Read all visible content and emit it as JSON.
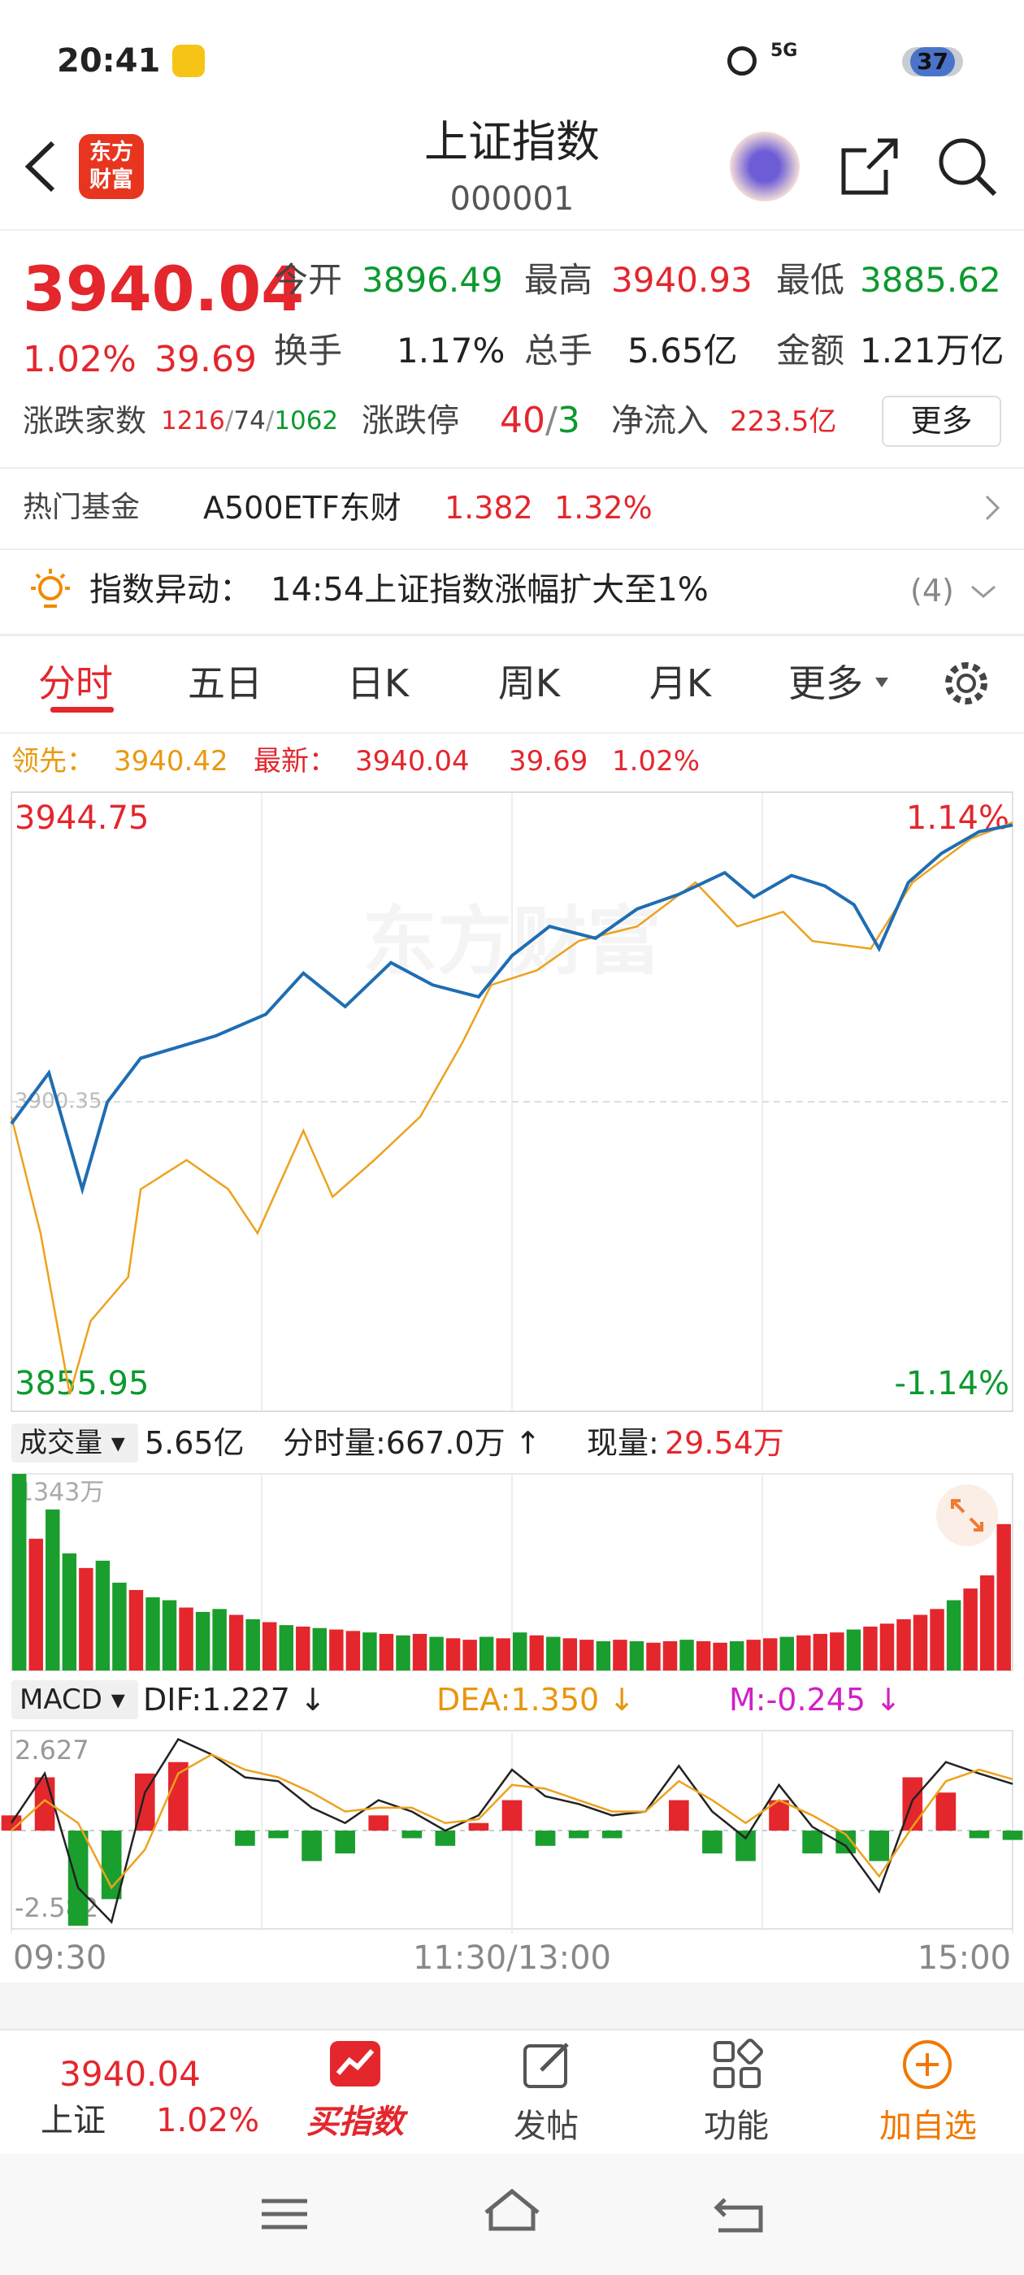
{
  "status_bar": {
    "time": "20:41",
    "network": "5G",
    "battery": "37"
  },
  "header": {
    "title": "上证指数",
    "code": "000001",
    "logo_line1": "东方",
    "logo_line2": "财富"
  },
  "quote": {
    "price": "3940.04",
    "change_pct": "1.02%",
    "change": "39.69",
    "open_label": "今开",
    "open": "3896.49",
    "high_label": "最高",
    "high": "3940.93",
    "low_label": "最低",
    "low": "3885.62",
    "turnover_label": "换手",
    "turnover": "1.17%",
    "volume_label": "总手",
    "volume": "5.65亿",
    "amount_label": "金额",
    "amount": "1.21万亿",
    "breadth_label": "涨跌家数",
    "advances": "1216",
    "unchanged": "74",
    "declines": "1062",
    "limit_label": "涨跌停",
    "limit_up": "40",
    "limit_down": "3",
    "inflow_label": "净流入",
    "inflow": "223.5亿",
    "more": "更多"
  },
  "hot_fund": {
    "label": "热门基金",
    "name": "A500ETF东财",
    "price": "1.382",
    "change": "1.32%"
  },
  "alert": {
    "label": "指数异动：",
    "text": "14:54上证指数涨幅扩大至1%",
    "count": "(4)"
  },
  "tabs": [
    "分时",
    "五日",
    "日K",
    "周K",
    "月K",
    "更多"
  ],
  "legend": {
    "lead_label": "领先：",
    "lead": "3940.42",
    "last_label": "最新：",
    "last": "3940.04",
    "change": "39.69",
    "change_pct": "1.02%"
  },
  "volume_header": {
    "selector": "成交量",
    "total": "5.65亿",
    "minute": "分时量:667.0万 ↑",
    "current_label": "现量:",
    "current": "29.54万"
  },
  "macd_header": {
    "selector": "MACD",
    "dif": "DIF:1.227 ↓",
    "dea": "DEA:1.350 ↓",
    "m": "M:-0.245 ↓"
  },
  "bottom_bar": {
    "price": "3940.04",
    "name": "上证",
    "change_pct": "1.02%",
    "buy": "买指数",
    "post": "发帖",
    "tools": "功能",
    "watch": "加自选"
  },
  "chart_data": [
    {
      "type": "line",
      "watermark": "东方财富",
      "xlim": [
        0,
        240
      ],
      "ylim": [
        3855.95,
        3944.75
      ],
      "yticks": [
        3855.95,
        3900.35,
        3944.75
      ],
      "y2lim": [
        -1.14,
        1.14
      ],
      "y2ticks": [
        {
          "value": -1.14,
          "label": "-1.14%"
        },
        {
          "value": 1.14,
          "label": "1.14%"
        }
      ],
      "series": [
        {
          "name": "最新",
          "color": "#1f6db3",
          "x": [
            0,
            9,
            17,
            23,
            31,
            49,
            61,
            70,
            80,
            91,
            101,
            112,
            120,
            129,
            140,
            150,
            160,
            171,
            178,
            187,
            195,
            202,
            208,
            215,
            223,
            232,
            240
          ],
          "values": [
            3897.2,
            3904.5,
            3887.8,
            3900.3,
            3906.6,
            3909.8,
            3912.9,
            3918.8,
            3914.0,
            3920.3,
            3917.1,
            3915.4,
            3921.3,
            3925.5,
            3923.8,
            3928.0,
            3930.1,
            3933.2,
            3929.7,
            3932.8,
            3931.3,
            3928.6,
            3922.3,
            3931.8,
            3936.0,
            3939.1,
            3940.04
          ]
        },
        {
          "name": "领先",
          "color": "#eda21d",
          "x": [
            0,
            7,
            14,
            19,
            28,
            31,
            42,
            52,
            59,
            70,
            77,
            87,
            98,
            108,
            115,
            126,
            136,
            150,
            164,
            174,
            185,
            192,
            206,
            216,
            230,
            240
          ],
          "values": [
            3898.2,
            3881.5,
            3858.4,
            3868.9,
            3875.2,
            3887.8,
            3892.0,
            3887.8,
            3881.5,
            3896.2,
            3886.7,
            3892.0,
            3898.2,
            3908.7,
            3917.1,
            3919.2,
            3923.4,
            3925.5,
            3931.8,
            3925.5,
            3927.6,
            3923.4,
            3922.3,
            3931.8,
            3938.1,
            3940.42
          ]
        }
      ]
    },
    {
      "type": "bar",
      "xlim": [
        0,
        240
      ],
      "ylim": [
        0,
        1343
      ],
      "yticks": [
        {
          "value": 1343,
          "label": "1343万"
        }
      ],
      "up_color": "#e4262d",
      "down_color": "#1a9e2e",
      "x": [
        0,
        4,
        8,
        12,
        16,
        20,
        24,
        28,
        32,
        36,
        40,
        44,
        48,
        52,
        56,
        60,
        64,
        68,
        72,
        76,
        80,
        84,
        88,
        92,
        96,
        100,
        104,
        108,
        112,
        116,
        120,
        124,
        128,
        132,
        136,
        140,
        144,
        148,
        152,
        156,
        160,
        164,
        168,
        172,
        176,
        180,
        184,
        188,
        192,
        196,
        200,
        204,
        208,
        212,
        216,
        220,
        224,
        228,
        232,
        236
      ],
      "values": [
        1343,
        900,
        1100,
        800,
        700,
        750,
        600,
        550,
        500,
        480,
        430,
        400,
        420,
        380,
        350,
        330,
        310,
        300,
        290,
        280,
        270,
        260,
        250,
        240,
        250,
        230,
        220,
        210,
        230,
        220,
        260,
        240,
        230,
        220,
        210,
        200,
        210,
        200,
        190,
        200,
        210,
        200,
        190,
        200,
        210,
        220,
        230,
        240,
        250,
        260,
        280,
        300,
        320,
        350,
        380,
        420,
        480,
        560,
        650,
        1000
      ],
      "directions": [
        "down",
        "up",
        "down",
        "down",
        "up",
        "down",
        "down",
        "up",
        "down",
        "down",
        "up",
        "down",
        "down",
        "up",
        "down",
        "up",
        "down",
        "up",
        "down",
        "up",
        "up",
        "down",
        "up",
        "down",
        "up",
        "down",
        "up",
        "up",
        "down",
        "up",
        "down",
        "up",
        "down",
        "up",
        "up",
        "down",
        "up",
        "down",
        "up",
        "up",
        "down",
        "up",
        "up",
        "down",
        "up",
        "up",
        "down",
        "up",
        "up",
        "up",
        "down",
        "up",
        "up",
        "up",
        "up",
        "up",
        "down",
        "up",
        "up",
        "up"
      ]
    },
    {
      "type": "macd",
      "xlim": [
        0,
        240
      ],
      "ylim": [
        -2.582,
        2.627
      ],
      "yticks": [
        -2.582,
        2.627
      ],
      "xticks": [
        {
          "value": 0,
          "label": "09:30"
        },
        {
          "value": 120,
          "label": "11:30/13:00"
        },
        {
          "value": 240,
          "label": "15:00"
        }
      ],
      "up_color": "#e4262d",
      "down_color": "#1a9e2e",
      "x": [
        0,
        8,
        16,
        24,
        32,
        40,
        48,
        56,
        64,
        72,
        80,
        88,
        96,
        104,
        112,
        120,
        128,
        136,
        144,
        152,
        160,
        168,
        176,
        184,
        192,
        200,
        208,
        216,
        224,
        232,
        240
      ],
      "series": [
        {
          "name": "DIF",
          "type": "line",
          "color": "#222222",
          "values": [
            0.2,
            1.5,
            -1.5,
            -2.4,
            1.0,
            2.4,
            2.0,
            1.4,
            1.3,
            0.6,
            0.2,
            0.8,
            0.5,
            0.0,
            0.4,
            1.6,
            0.9,
            0.7,
            0.4,
            0.5,
            1.7,
            0.5,
            -0.2,
            1.2,
            0.1,
            -0.4,
            -1.6,
            0.8,
            1.8,
            1.5,
            1.227
          ]
        },
        {
          "name": "DEA",
          "type": "line",
          "color": "#eda21d",
          "values": [
            0.0,
            0.8,
            0.2,
            -1.5,
            -0.5,
            1.5,
            2.0,
            1.6,
            1.4,
            1.0,
            0.5,
            0.6,
            0.6,
            0.2,
            0.3,
            1.2,
            1.1,
            0.8,
            0.5,
            0.5,
            1.3,
            0.8,
            0.2,
            0.8,
            0.4,
            -0.1,
            -1.2,
            0.1,
            1.3,
            1.6,
            1.35
          ]
        },
        {
          "name": "M",
          "type": "bar",
          "values": [
            0.4,
            1.4,
            -2.5,
            -1.8,
            1.5,
            1.8,
            0.0,
            -0.4,
            -0.2,
            -0.8,
            -0.6,
            0.4,
            -0.2,
            -0.4,
            0.2,
            0.8,
            -0.4,
            -0.2,
            -0.2,
            0.0,
            0.8,
            -0.6,
            -0.8,
            0.8,
            -0.6,
            -0.6,
            -0.8,
            1.4,
            1.0,
            -0.2,
            -0.245
          ]
        }
      ]
    }
  ]
}
